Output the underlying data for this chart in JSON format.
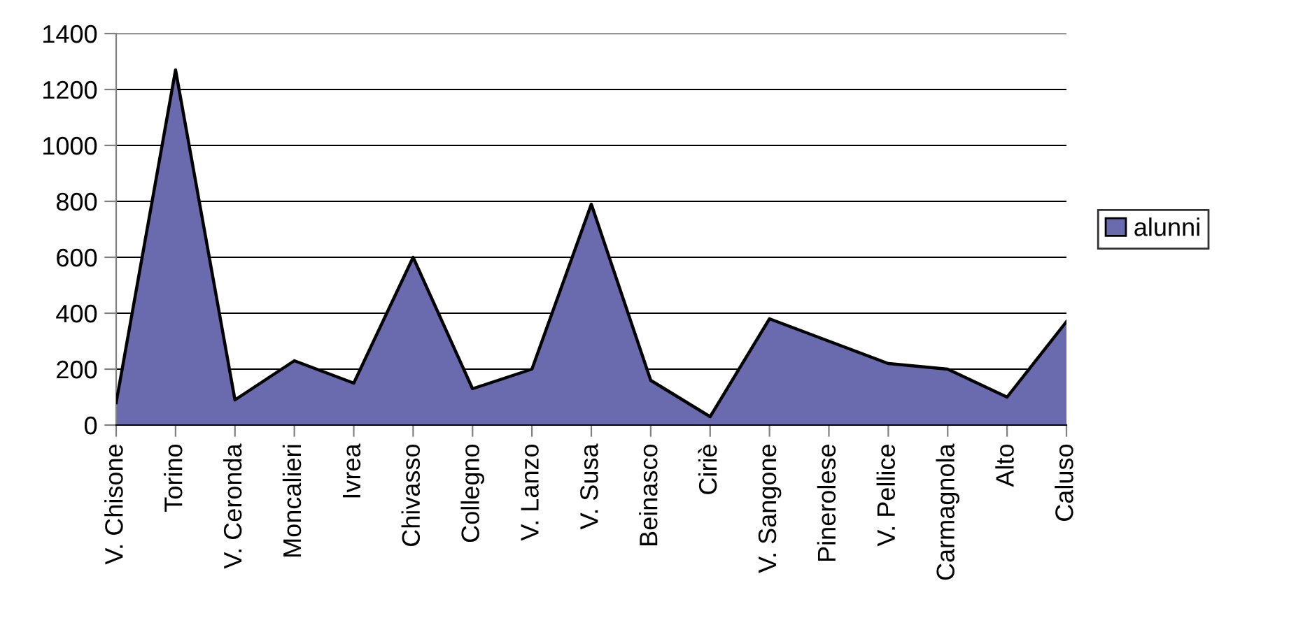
{
  "chart_data": {
    "type": "area",
    "categories": [
      "V. Chisone",
      "Torino",
      "V. Ceronda",
      "Moncalieri",
      "Ivrea",
      "Chivasso",
      "Collegno",
      "V. Lanzo",
      "V. Susa",
      "Beinasco",
      "Ciriè",
      "V. Sangone",
      "Pinerolese",
      "V. Pellice",
      "Carmagnola",
      "Alto",
      "Caluso"
    ],
    "series": [
      {
        "name": "alunni",
        "color": "#6a6aae",
        "values": [
          80,
          1270,
          90,
          230,
          150,
          600,
          130,
          200,
          790,
          160,
          30,
          380,
          300,
          220,
          200,
          100,
          370
        ]
      }
    ],
    "ylim": [
      0,
      1400
    ],
    "yticks": [
      0,
      200,
      400,
      600,
      800,
      1000,
      1200,
      1400
    ],
    "grid": "y",
    "legend": "right"
  }
}
